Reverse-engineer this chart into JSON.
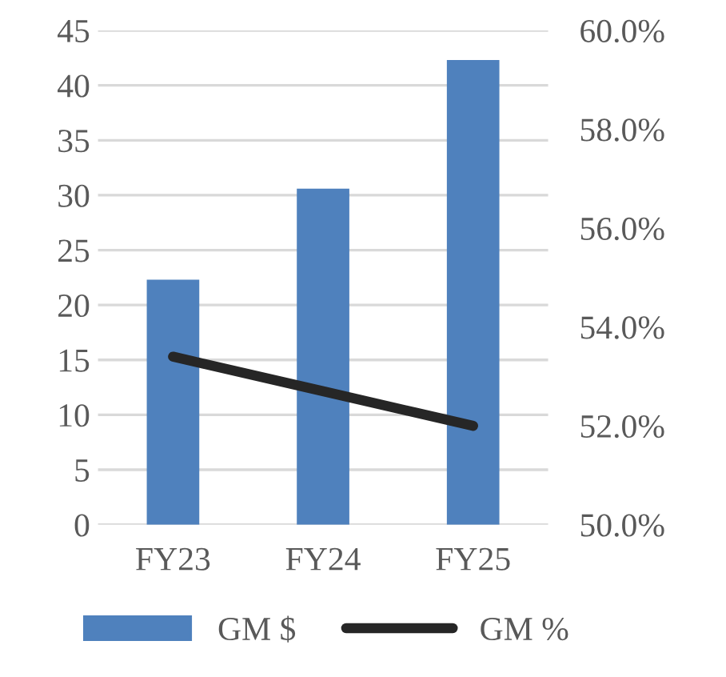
{
  "chart_data": {
    "type": "bar",
    "categories": [
      "FY23",
      "FY24",
      "FY25"
    ],
    "series": [
      {
        "name": "GM $",
        "color": "#4f81bd",
        "values": [
          22.3,
          30.6,
          42.3
        ]
      },
      {
        "name": "GM %",
        "type": "line",
        "axis": "y2",
        "color": "#262626",
        "values": [
          53.4,
          52.7,
          52.0
        ]
      }
    ],
    "ylim": [
      0,
      45
    ],
    "yticks": [
      0,
      5,
      10,
      15,
      20,
      25,
      30,
      35,
      40,
      45
    ],
    "y2lim": [
      50,
      60
    ],
    "y2ticks": [
      {
        "value": 50,
        "label": "50.0%"
      },
      {
        "value": 52,
        "label": "52.0%"
      },
      {
        "value": 54,
        "label": "54.0%"
      },
      {
        "value": 56,
        "label": "56.0%"
      },
      {
        "value": 58,
        "label": "58.0%"
      },
      {
        "value": 60,
        "label": "60.0%"
      }
    ],
    "grid": "y",
    "legend": "bottom",
    "marker": "none",
    "line_style": "solid"
  }
}
